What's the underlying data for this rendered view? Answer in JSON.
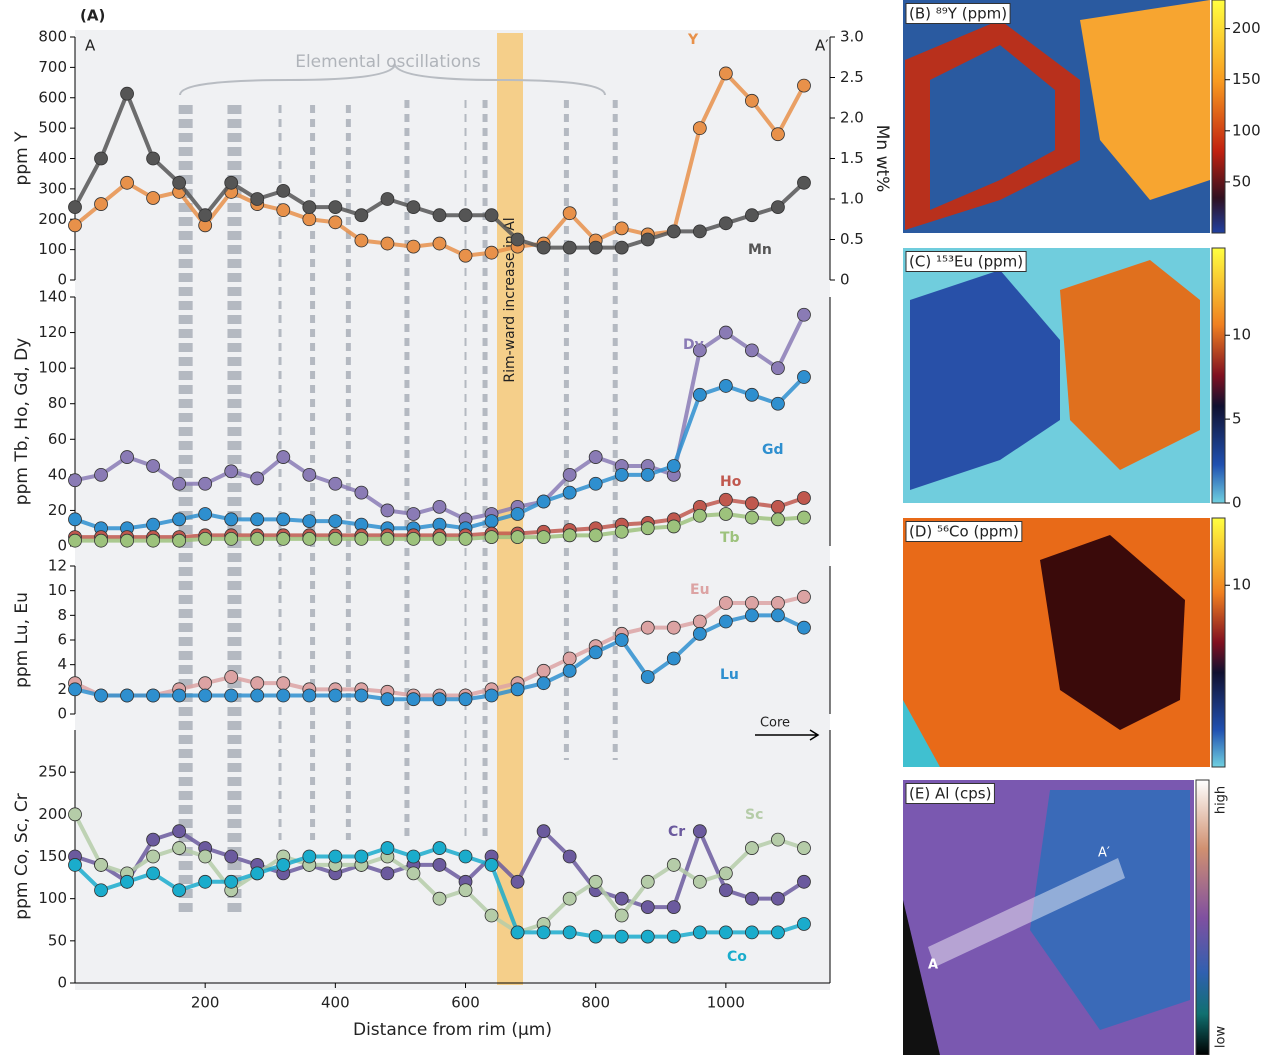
{
  "chart_data": [
    {
      "type": "line",
      "title": "(A)",
      "y_label": "ppm Y",
      "y2_label": "Mn wt%",
      "x": [
        0,
        40,
        80,
        120,
        160,
        200,
        240,
        280,
        320,
        360,
        400,
        440,
        480,
        520,
        560,
        600,
        640,
        680,
        720,
        760,
        800,
        840,
        880,
        920,
        960,
        1000,
        1040,
        1080,
        1120
      ],
      "xlim": [
        0,
        1160
      ],
      "ylim": [
        0,
        800
      ],
      "yticks": [
        0,
        100,
        200,
        300,
        400,
        500,
        600,
        700,
        800
      ],
      "y2lim": [
        0,
        3
      ],
      "y2ticks": [
        0,
        0.5,
        {
          "value": 1,
          "label": "1.0"
        },
        1.5,
        {
          "value": 2,
          "label": "2.0"
        },
        2.5,
        {
          "value": 3,
          "label": "3.0"
        }
      ],
      "series": [
        {
          "name": "Y",
          "color": "#e8914a",
          "values": [
            180,
            250,
            320,
            270,
            290,
            180,
            290,
            250,
            230,
            200,
            190,
            130,
            120,
            110,
            120,
            80,
            90,
            110,
            120,
            220,
            130,
            170,
            150,
            160,
            500,
            680,
            590,
            480,
            640
          ]
        },
        {
          "name": "Mn",
          "color": "#555555",
          "axis": "y2",
          "values": [
            0.9,
            1.5,
            2.3,
            1.5,
            1.2,
            0.8,
            1.2,
            1.0,
            1.1,
            0.9,
            0.9,
            0.8,
            1.0,
            0.9,
            0.8,
            0.8,
            0.8,
            0.5,
            0.4,
            0.4,
            0.4,
            0.4,
            0.5,
            0.6,
            0.6,
            0.7,
            0.8,
            0.9,
            1.2
          ]
        }
      ]
    },
    {
      "type": "line",
      "y_label": "ppm Tb, Ho, Gd, Dy",
      "x": [
        0,
        40,
        80,
        120,
        160,
        200,
        240,
        280,
        320,
        360,
        400,
        440,
        480,
        520,
        560,
        600,
        640,
        680,
        720,
        760,
        800,
        840,
        880,
        920,
        960,
        1000,
        1040,
        1080,
        1120
      ],
      "xlim": [
        0,
        1160
      ],
      "ylim": [
        0,
        140
      ],
      "yticks": [
        0,
        20,
        40,
        60,
        80,
        100,
        120,
        140
      ],
      "series": [
        {
          "name": "Dy",
          "color": "#8a7bb5",
          "values": [
            37,
            40,
            50,
            45,
            35,
            35,
            42,
            38,
            50,
            40,
            35,
            30,
            20,
            18,
            22,
            15,
            18,
            22,
            25,
            40,
            50,
            45,
            45,
            40,
            110,
            120,
            110,
            100,
            130
          ]
        },
        {
          "name": "Gd",
          "color": "#2e8fcf",
          "values": [
            15,
            10,
            10,
            12,
            15,
            18,
            15,
            15,
            15,
            14,
            14,
            12,
            10,
            10,
            12,
            10,
            14,
            18,
            25,
            30,
            35,
            40,
            40,
            45,
            85,
            90,
            85,
            80,
            95
          ]
        },
        {
          "name": "Ho",
          "color": "#c0584e",
          "values": [
            5,
            5,
            5,
            5,
            5,
            6,
            6,
            6,
            6,
            6,
            6,
            6,
            6,
            6,
            6,
            6,
            7,
            7,
            8,
            9,
            10,
            12,
            13,
            15,
            22,
            26,
            24,
            22,
            27
          ]
        },
        {
          "name": "Tb",
          "color": "#9dc27c",
          "values": [
            3,
            3,
            3,
            3,
            3,
            4,
            4,
            4,
            4,
            4,
            4,
            4,
            4,
            4,
            4,
            4,
            5,
            5,
            5,
            6,
            6,
            8,
            10,
            11,
            17,
            18,
            16,
            15,
            16
          ]
        }
      ]
    },
    {
      "type": "line",
      "y_label": "ppm Lu, Eu",
      "x": [
        0,
        40,
        80,
        120,
        160,
        200,
        240,
        280,
        320,
        360,
        400,
        440,
        480,
        520,
        560,
        600,
        640,
        680,
        720,
        760,
        800,
        840,
        880,
        920,
        960,
        1000,
        1040,
        1080,
        1120
      ],
      "xlim": [
        0,
        1160
      ],
      "ylim": [
        0,
        12
      ],
      "yticks": [
        0,
        2,
        4,
        6,
        8,
        10,
        12
      ],
      "series": [
        {
          "name": "Eu",
          "color": "#dca3a3",
          "values": [
            2.5,
            1.5,
            1.5,
            1.5,
            2,
            2.5,
            3,
            2.5,
            2.5,
            2,
            2,
            2,
            1.8,
            1.5,
            1.5,
            1.5,
            2,
            2.5,
            3.5,
            4.5,
            5.5,
            6.5,
            7,
            7,
            7.5,
            9,
            9,
            9,
            9.5
          ]
        },
        {
          "name": "Lu",
          "color": "#2e8fcf",
          "values": [
            2,
            1.5,
            1.5,
            1.5,
            1.5,
            1.5,
            1.5,
            1.5,
            1.5,
            1.5,
            1.5,
            1.5,
            1.2,
            1.2,
            1.2,
            1.2,
            1.5,
            2,
            2.5,
            3.5,
            5,
            6,
            3,
            4.5,
            6.5,
            7.5,
            8,
            8,
            7
          ]
        }
      ]
    },
    {
      "type": "line",
      "y_label": "ppm Co, Sc, Cr",
      "x_label": "Distance from rim (μm)",
      "x": [
        0,
        40,
        80,
        120,
        160,
        200,
        240,
        280,
        320,
        360,
        400,
        440,
        480,
        520,
        560,
        600,
        640,
        680,
        720,
        760,
        800,
        840,
        880,
        920,
        960,
        1000,
        1040,
        1080,
        1120
      ],
      "xlim": [
        0,
        1160
      ],
      "xticks": [
        200,
        400,
        600,
        800,
        1000
      ],
      "ylim": [
        0,
        300
      ],
      "yticks": [
        0,
        50,
        100,
        150,
        200,
        250
      ],
      "series": [
        {
          "name": "Cr",
          "color": "#6b5a9e",
          "values": [
            150,
            140,
            120,
            170,
            180,
            160,
            150,
            140,
            130,
            140,
            130,
            140,
            130,
            140,
            140,
            120,
            150,
            120,
            180,
            150,
            110,
            100,
            90,
            90,
            180,
            110,
            100,
            100,
            120
          ]
        },
        {
          "name": "Sc",
          "color": "#b5cca8",
          "values": [
            200,
            140,
            130,
            150,
            160,
            150,
            110,
            130,
            150,
            140,
            140,
            140,
            150,
            130,
            100,
            110,
            80,
            60,
            70,
            100,
            120,
            80,
            120,
            140,
            120,
            130,
            160,
            170,
            160
          ]
        },
        {
          "name": "Co",
          "color": "#1aaccc",
          "values": [
            140,
            110,
            120,
            130,
            110,
            120,
            120,
            130,
            140,
            150,
            150,
            150,
            160,
            150,
            160,
            150,
            140,
            60,
            60,
            60,
            55,
            55,
            55,
            55,
            60,
            60,
            60,
            60,
            70
          ]
        }
      ]
    }
  ],
  "annotations": {
    "oscillations": "Elemental oscillations",
    "al_band": "Rim-ward increase in Al",
    "core": "Core",
    "start": "A",
    "end": "A′"
  },
  "maps": [
    {
      "title": "(B) ⁸⁹Y (ppm)",
      "clim": [
        0,
        228
      ],
      "ticks": [
        50,
        100,
        150,
        200
      ]
    },
    {
      "title": "(C) ¹⁵³Eu (ppm)",
      "clim": [
        0,
        15.2
      ],
      "ticks": [
        0,
        5,
        10
      ]
    },
    {
      "title": "(D) ⁵⁶Co (ppm)",
      "clim": [
        0,
        13.7
      ],
      "ticks": [
        10
      ]
    },
    {
      "title": "(E) Al (cps)",
      "labels": [
        "high",
        "low"
      ],
      "start": "A",
      "end": "A′"
    }
  ]
}
